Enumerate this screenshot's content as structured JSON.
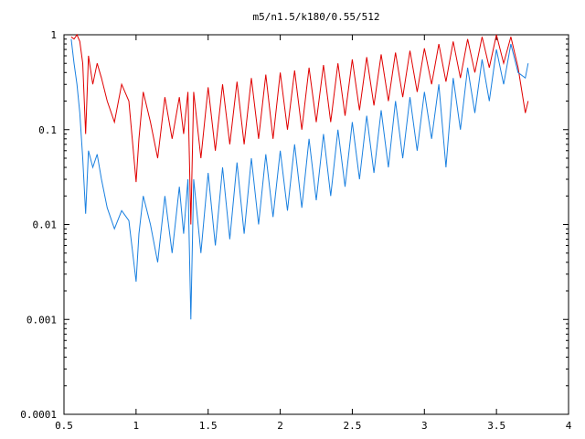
{
  "chart_data": {
    "type": "line",
    "title": "m5/n1.5/k180/0.55/512",
    "xlabel": "",
    "ylabel": "",
    "xlim": [
      0.5,
      4
    ],
    "ylim": [
      0.0001,
      1
    ],
    "y_scale": "log",
    "x_ticks": [
      0.5,
      1,
      1.5,
      2,
      2.5,
      3,
      3.5,
      4
    ],
    "x_tick_labels": [
      "0.5",
      "1",
      "1.5",
      "2",
      "2.5",
      "3",
      "3.5",
      "4"
    ],
    "y_ticks": [
      0.0001,
      0.001,
      0.01,
      0.1,
      1
    ],
    "y_tick_labels": [
      "0.0001",
      "0.001",
      "0.01",
      "0.1",
      "1"
    ],
    "grid": false,
    "legend": "none",
    "series": [
      {
        "color": "#e00000",
        "values_note": "",
        "x": [
          0.55,
          0.57,
          0.59,
          0.61,
          0.63,
          0.65,
          0.67,
          0.7,
          0.73,
          0.76,
          0.8,
          0.85,
          0.9,
          0.95,
          1.0,
          1.02,
          1.05,
          1.1,
          1.15,
          1.2,
          1.25,
          1.3,
          1.33,
          1.36,
          1.38,
          1.4,
          1.45,
          1.5,
          1.55,
          1.6,
          1.65,
          1.7,
          1.75,
          1.8,
          1.85,
          1.9,
          1.95,
          2.0,
          2.05,
          2.1,
          2.15,
          2.2,
          2.25,
          2.3,
          2.35,
          2.4,
          2.45,
          2.5,
          2.55,
          2.6,
          2.65,
          2.7,
          2.75,
          2.8,
          2.85,
          2.9,
          2.95,
          3.0,
          3.05,
          3.1,
          3.15,
          3.2,
          3.25,
          3.3,
          3.35,
          3.4,
          3.45,
          3.5,
          3.55,
          3.6,
          3.65,
          3.7,
          3.72
        ],
        "y": [
          0.95,
          0.9,
          1.0,
          0.85,
          0.5,
          0.09,
          0.6,
          0.3,
          0.5,
          0.35,
          0.2,
          0.12,
          0.3,
          0.2,
          0.028,
          0.08,
          0.25,
          0.12,
          0.05,
          0.22,
          0.08,
          0.22,
          0.09,
          0.25,
          0.01,
          0.25,
          0.05,
          0.28,
          0.06,
          0.3,
          0.07,
          0.32,
          0.07,
          0.35,
          0.08,
          0.38,
          0.08,
          0.4,
          0.1,
          0.42,
          0.1,
          0.45,
          0.12,
          0.48,
          0.12,
          0.5,
          0.14,
          0.55,
          0.16,
          0.58,
          0.18,
          0.62,
          0.2,
          0.65,
          0.22,
          0.68,
          0.25,
          0.72,
          0.3,
          0.8,
          0.32,
          0.85,
          0.35,
          0.9,
          0.4,
          0.95,
          0.45,
          1.0,
          0.5,
          0.95,
          0.45,
          0.15,
          0.2
        ]
      },
      {
        "color": "#1a80e0",
        "x": [
          0.55,
          0.57,
          0.59,
          0.61,
          0.63,
          0.65,
          0.67,
          0.7,
          0.73,
          0.76,
          0.8,
          0.85,
          0.9,
          0.95,
          1.0,
          1.02,
          1.05,
          1.1,
          1.15,
          1.2,
          1.25,
          1.3,
          1.33,
          1.36,
          1.38,
          1.4,
          1.45,
          1.5,
          1.55,
          1.6,
          1.65,
          1.7,
          1.75,
          1.8,
          1.85,
          1.9,
          1.95,
          2.0,
          2.05,
          2.1,
          2.15,
          2.2,
          2.25,
          2.3,
          2.35,
          2.4,
          2.45,
          2.5,
          2.55,
          2.6,
          2.65,
          2.7,
          2.75,
          2.8,
          2.85,
          2.9,
          2.95,
          3.0,
          3.05,
          3.1,
          3.15,
          3.2,
          3.25,
          3.3,
          3.35,
          3.4,
          3.45,
          3.5,
          3.55,
          3.6,
          3.65,
          3.7,
          3.72
        ],
        "y": [
          0.9,
          0.5,
          0.3,
          0.15,
          0.05,
          0.013,
          0.06,
          0.04,
          0.055,
          0.03,
          0.015,
          0.009,
          0.014,
          0.011,
          0.0025,
          0.008,
          0.02,
          0.01,
          0.004,
          0.02,
          0.005,
          0.025,
          0.008,
          0.03,
          0.001,
          0.03,
          0.005,
          0.035,
          0.006,
          0.04,
          0.007,
          0.045,
          0.008,
          0.05,
          0.01,
          0.055,
          0.012,
          0.06,
          0.014,
          0.07,
          0.015,
          0.08,
          0.018,
          0.09,
          0.02,
          0.1,
          0.025,
          0.12,
          0.03,
          0.14,
          0.035,
          0.16,
          0.04,
          0.2,
          0.05,
          0.22,
          0.06,
          0.25,
          0.08,
          0.3,
          0.04,
          0.35,
          0.1,
          0.45,
          0.15,
          0.55,
          0.2,
          0.7,
          0.3,
          0.8,
          0.4,
          0.35,
          0.5
        ]
      }
    ]
  }
}
